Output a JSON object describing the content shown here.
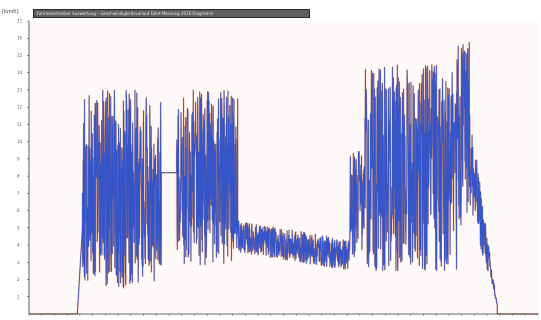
{
  "unit_label": "[km/h]",
  "title_text": "Fahrtenschreiber Auswertung – Geschwindigkeitsverlauf Fahrt Messung 2016 Diagramm",
  "colors": {
    "background": "#ffffff",
    "plot_background": "#fdf9f9",
    "axis": "#333333",
    "gridline": "#e8e2e2",
    "series_main": "#3555c8",
    "series_secondary": "#e07a3a",
    "title_bg": "#5f5f5f"
  },
  "chart_data": {
    "type": "line",
    "xlabel": "",
    "ylabel": "[km/h]",
    "xlim": [
      0,
      100
    ],
    "ylim": [
      0,
      17
    ],
    "yticks": [
      "1",
      "2",
      "3",
      "4",
      "5",
      "6",
      "7",
      "8",
      "9",
      "10",
      "11",
      "12",
      "13",
      "14",
      "15",
      "16",
      "17"
    ],
    "grid": false,
    "legend": "none",
    "segments": [
      {
        "x_start": 0.0,
        "x_end": 9.5,
        "kind": "flat",
        "level": 0.0
      },
      {
        "x_start": 9.5,
        "x_end": 10.5,
        "kind": "ramp",
        "from": 0.0,
        "to": 5.0
      },
      {
        "x_start": 10.5,
        "x_end": 26.0,
        "kind": "volatile",
        "low": 1.5,
        "high": 13.0,
        "base": 7.0
      },
      {
        "x_start": 26.0,
        "x_end": 29.0,
        "kind": "flat",
        "level": 8.2
      },
      {
        "x_start": 29.0,
        "x_end": 41.0,
        "kind": "volatile",
        "low": 2.8,
        "high": 13.0,
        "base": 7.5
      },
      {
        "x_start": 41.0,
        "x_end": 63.0,
        "kind": "band",
        "from": 4.5,
        "to": 3.4,
        "jitter": 0.9
      },
      {
        "x_start": 63.0,
        "x_end": 66.0,
        "kind": "volatile",
        "low": 3.0,
        "high": 9.5,
        "base": 6.5
      },
      {
        "x_start": 66.0,
        "x_end": 84.0,
        "kind": "volatile",
        "low": 2.5,
        "high": 14.5,
        "base": 8.5
      },
      {
        "x_start": 84.0,
        "x_end": 86.5,
        "kind": "volatile",
        "low": 5.0,
        "high": 15.8,
        "base": 11.0
      },
      {
        "x_start": 86.5,
        "x_end": 92.0,
        "kind": "decay",
        "from": 9.0,
        "to": 0.5,
        "jitter": 3.0
      },
      {
        "x_start": 92.0,
        "x_end": 100.0,
        "kind": "flat",
        "level": 0.0
      }
    ]
  }
}
